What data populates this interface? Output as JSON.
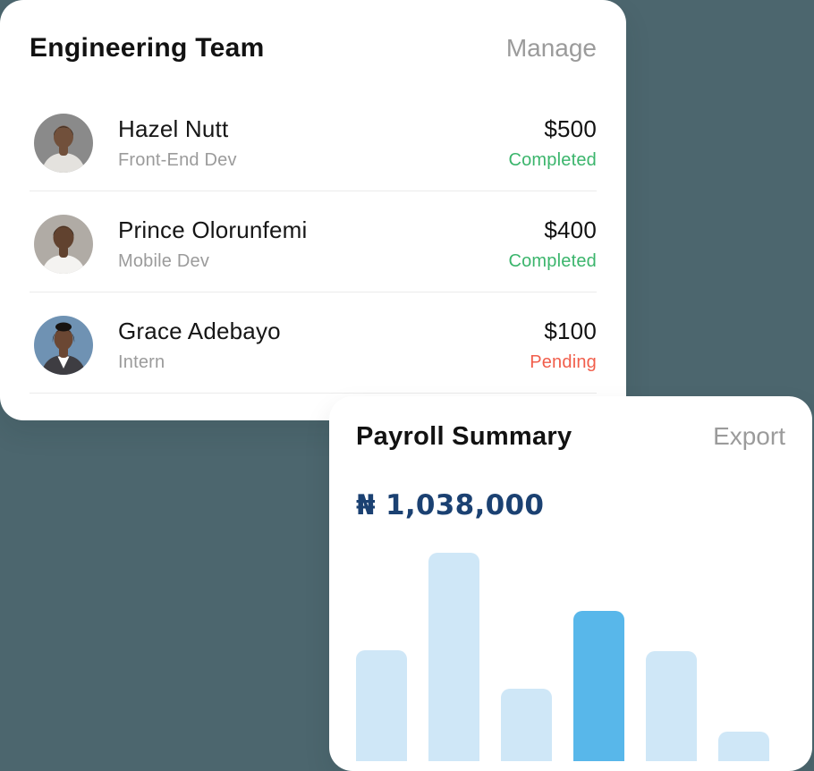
{
  "colors": {
    "background": "#4c666e",
    "card": "#ffffff",
    "title_text": "#121212",
    "muted_text": "#9b9b9b",
    "divider": "#ebebeb",
    "completed_green": "#3bb56c",
    "pending_red": "#f15e4b",
    "total_navy": "#1b4172",
    "bar_light_blue": "#cfe7f7",
    "bar_highlight_blue": "#58b7ea"
  },
  "team_card": {
    "title": "Engineering Team",
    "action_label": "Manage",
    "members": [
      {
        "name": "Hazel Nutt",
        "role": "Front-End Dev",
        "amount": "$500",
        "status": "Completed",
        "status_style": "color:#3bb56c",
        "avatar_style": "--bg:#8a8a8a;--skin:#71503b;--shirt:#e4e2de;--hair:#201a15"
      },
      {
        "name": "Prince Olorunfemi",
        "role": "Mobile Dev",
        "amount": "$400",
        "status": "Completed",
        "status_style": "color:#3bb56c",
        "avatar_style": "--bg:#b0aba5;--skin:#61422f;--shirt:#f4f3f1;--hair:#18130f"
      },
      {
        "name": "Grace Adebayo",
        "role": "Intern",
        "amount": "$100",
        "status": "Pending",
        "status_style": "color:#f15e4b",
        "avatar_style": "--bg:#6f92b3;--skin:#6b4733;--shirt:#3e3d42;--hair:#171310;--shirt2:#ffffff"
      }
    ]
  },
  "payroll_card": {
    "title": "Payroll Summary",
    "action_label": "Export",
    "total": "₦ 1,038,000"
  },
  "chart_data": {
    "type": "bar",
    "title": "Payroll Summary",
    "categories": [
      "",
      "",
      "",
      "",
      "",
      ""
    ],
    "values": [
      124,
      233,
      81,
      168,
      123,
      33
    ],
    "ylim": [
      0,
      235
    ],
    "highlighted_index": 3,
    "bar_color": "#cfe7f7",
    "highlight_color": "#58b7ea",
    "xlabel": "",
    "ylabel": "",
    "grid": false,
    "legend": false
  }
}
